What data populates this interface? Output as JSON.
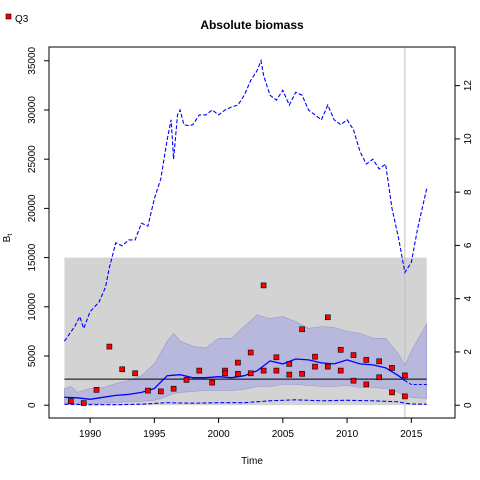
{
  "chart_data": {
    "type": "line",
    "title": "Absolute biomass",
    "xlabel": "Time",
    "ylabel": "B",
    "ylabel_subscript": "t",
    "xlim": [
      1986.8,
      2018.4
    ],
    "ylim": [
      -1300,
      36400
    ],
    "y2lim": [
      -0.48,
      13.45
    ],
    "xticks": [
      1990,
      1995,
      2000,
      2005,
      2010,
      2015
    ],
    "yticks": [
      0,
      5000,
      10000,
      15000,
      20000,
      25000,
      30000,
      35000
    ],
    "y2ticks": [
      0,
      2,
      4,
      6,
      8,
      10,
      12
    ],
    "legend": {
      "position": "top-left",
      "entries": [
        {
          "label": "Q3",
          "marker": "red-square-point"
        }
      ]
    },
    "grey_region": {
      "x0": 1988,
      "x1": 2016.2,
      "y0": 0,
      "y1": 15000,
      "color": "#d3d3d3"
    },
    "reference_line": {
      "value": 2650,
      "color": "#000000"
    },
    "vline": {
      "x": 2014.5,
      "color": "#bebebe"
    },
    "biomass_band": {
      "x": [
        1988,
        1988.5,
        1989,
        1989.5,
        1990,
        1991,
        1992,
        1993,
        1994,
        1995,
        1996,
        1996.5,
        1997,
        1998,
        1999,
        2000,
        2001,
        2002,
        2003,
        2004,
        2005,
        2006,
        2007,
        2008,
        2009,
        2010,
        2011,
        2012,
        2013,
        2014,
        2014.5,
        2015,
        2016,
        2016.2
      ],
      "upper": [
        1700,
        1900,
        1300,
        1500,
        1700,
        1800,
        2200,
        2500,
        3000,
        4200,
        6500,
        7300,
        6500,
        6000,
        5800,
        6800,
        6800,
        8000,
        9200,
        8800,
        9000,
        8500,
        7800,
        8000,
        7900,
        7500,
        7300,
        6800,
        6800,
        5200,
        4000,
        5500,
        7800,
        8300
      ],
      "lower": [
        200,
        150,
        150,
        100,
        150,
        200,
        300,
        350,
        400,
        500,
        900,
        1200,
        1300,
        1400,
        1500,
        1500,
        1500,
        1600,
        1900,
        1900,
        2100,
        2100,
        2000,
        1900,
        1900,
        2000,
        1800,
        1800,
        1700,
        1300,
        900,
        800,
        700,
        700
      ],
      "color": "#b3b3de"
    },
    "biomass_median": {
      "x": [
        1988,
        1989,
        1990,
        1991,
        1992,
        1993,
        1994,
        1995,
        1996,
        1997,
        1998,
        1999,
        2000,
        2001,
        2002,
        2003,
        2004,
        2005,
        2006,
        2007,
        2008,
        2009,
        2010,
        2011,
        2012,
        2013,
        2014,
        2014.5
      ],
      "y": [
        800,
        750,
        600,
        800,
        1000,
        1100,
        1300,
        1700,
        3000,
        3100,
        2800,
        2800,
        2900,
        2800,
        3000,
        3500,
        4500,
        4200,
        4700,
        4600,
        4300,
        4200,
        4600,
        4200,
        4100,
        3800,
        3000,
        2500
      ],
      "color": "#0000ff"
    },
    "biomass_forecast": {
      "x": [
        2014.5,
        2015,
        2016,
        2016.2
      ],
      "y": [
        2500,
        2100,
        2100,
        2100
      ],
      "color": "#0000ff"
    },
    "upper_dashed": {
      "x": [
        1988,
        1988.8,
        1989.2,
        1989.5,
        1990,
        1990.7,
        1991.2,
        1991.5,
        1992,
        1992.5,
        1993,
        1993.5,
        1994,
        1994.5,
        1995,
        1995.5,
        1996,
        1996.3,
        1996.5,
        1996.8,
        1997,
        1997.3,
        1997.7,
        1998,
        1998.5,
        1999,
        1999.5,
        2000,
        2000.5,
        2001,
        2001.5,
        2002,
        2002.5,
        2003,
        2003.3,
        2003.5,
        2004,
        2004.5,
        2005,
        2005.5,
        2006,
        2006.5,
        2007,
        2007.5,
        2008,
        2008.5,
        2009,
        2009.5,
        2010,
        2010.5,
        2011,
        2011.5,
        2012,
        2012.5,
        2013,
        2013.5,
        2014,
        2014.5,
        2015,
        2015.5,
        2016.2
      ],
      "y": [
        6500,
        8000,
        9000,
        7800,
        9500,
        10500,
        12000,
        14000,
        16500,
        16200,
        16800,
        16800,
        18500,
        18200,
        21000,
        23000,
        27000,
        29000,
        25000,
        29500,
        30000,
        28500,
        28400,
        28500,
        29500,
        29500,
        30000,
        29500,
        30000,
        30300,
        30500,
        31500,
        33000,
        34000,
        35000,
        33500,
        31500,
        31000,
        32000,
        30500,
        31800,
        31500,
        30000,
        29500,
        29000,
        30500,
        29000,
        28500,
        29000,
        28000,
        25800,
        24500,
        25000,
        24000,
        24500,
        20000,
        17000,
        13500,
        14500,
        18000,
        22000
      ],
      "color": "#0000ff"
    },
    "lower_dashed": {
      "x": [
        1988,
        1990,
        1992,
        1994,
        1996,
        1998,
        2000,
        2002,
        2004,
        2006,
        2008,
        2010,
        2012,
        2014,
        2014.5,
        2015,
        2016.2
      ],
      "y": [
        100,
        50,
        50,
        100,
        250,
        200,
        250,
        250,
        450,
        550,
        450,
        500,
        450,
        350,
        200,
        120,
        100
      ],
      "color": "#0000ff"
    },
    "q3_points": {
      "x": [
        1988.5,
        1989.5,
        1990.5,
        1991.5,
        1992.5,
        1993.5,
        1994.5,
        1995.5,
        1996.5,
        1997.5,
        1998.5,
        1999.5,
        2000.5,
        2000.5,
        2001.5,
        2001.5,
        2002.5,
        2002.5,
        2003.5,
        2003.5,
        2004.5,
        2004.5,
        2005.5,
        2005.5,
        2006.5,
        2006.5,
        2007.5,
        2007.5,
        2008.5,
        2008.5,
        2009.5,
        2009.5,
        2010.5,
        2010.5,
        2011.5,
        2011.5,
        2012.5,
        2012.5,
        2013.5,
        2013.5,
        2014.5,
        2014.5
      ],
      "y2": [
        0.15,
        0.08,
        0.58,
        2.2,
        1.35,
        1.2,
        0.55,
        0.52,
        0.62,
        0.95,
        1.3,
        0.85,
        1.3,
        1.2,
        1.6,
        1.18,
        1.98,
        1.2,
        4.5,
        1.3,
        1.8,
        1.3,
        1.55,
        1.15,
        2.85,
        1.18,
        1.82,
        1.45,
        3.3,
        1.45,
        2.08,
        1.3,
        1.88,
        0.92,
        1.7,
        0.78,
        1.65,
        1.05,
        1.4,
        0.48,
        1.12,
        0.33
      ],
      "color": "#ff0000"
    }
  }
}
